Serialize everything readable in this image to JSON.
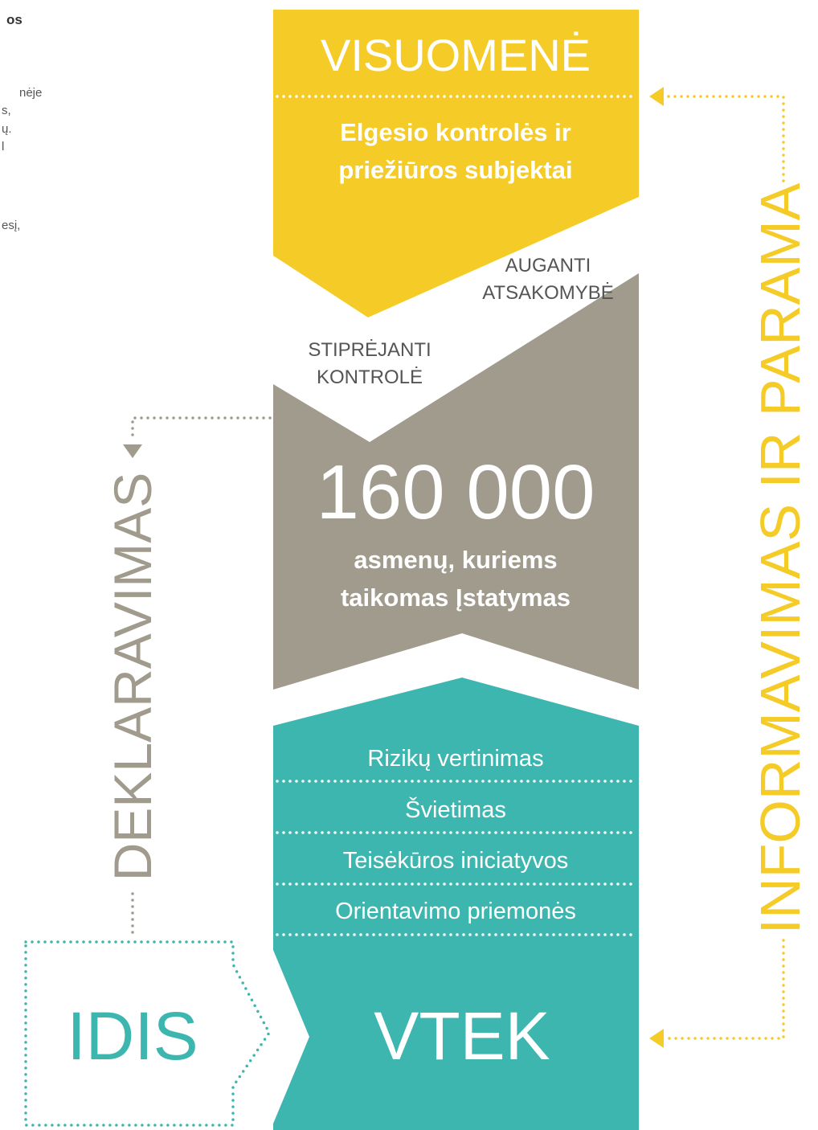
{
  "left_text": [
    "os",
    "nėje",
    "s,",
    "ų.",
    "l",
    "esį,"
  ],
  "top": {
    "title": "VISUOMENĖ",
    "subtitle": [
      "Elgesio kontrolės ir",
      "priežiūros subjektai"
    ]
  },
  "labels": {
    "growing_responsibility": [
      "AUGANTI",
      "ATSAKOMYBĖ"
    ],
    "growing_control": [
      "STIPRĖJANTI",
      "KONTROLĖ"
    ]
  },
  "middle": {
    "number": "160 000",
    "caption": [
      "asmenų, kuriems",
      "taikomas Įstatymas"
    ]
  },
  "bottom": {
    "items": [
      "Rizikų vertinimas",
      "Švietimas",
      "Teisėkūros iniciatyvos",
      "Orientavimo priemonės"
    ],
    "title": "VTEK"
  },
  "side": {
    "right": "INFORMAVIMAS IR PARAMA",
    "left": "DEKLARAVIMAS",
    "box": "IDIS"
  }
}
